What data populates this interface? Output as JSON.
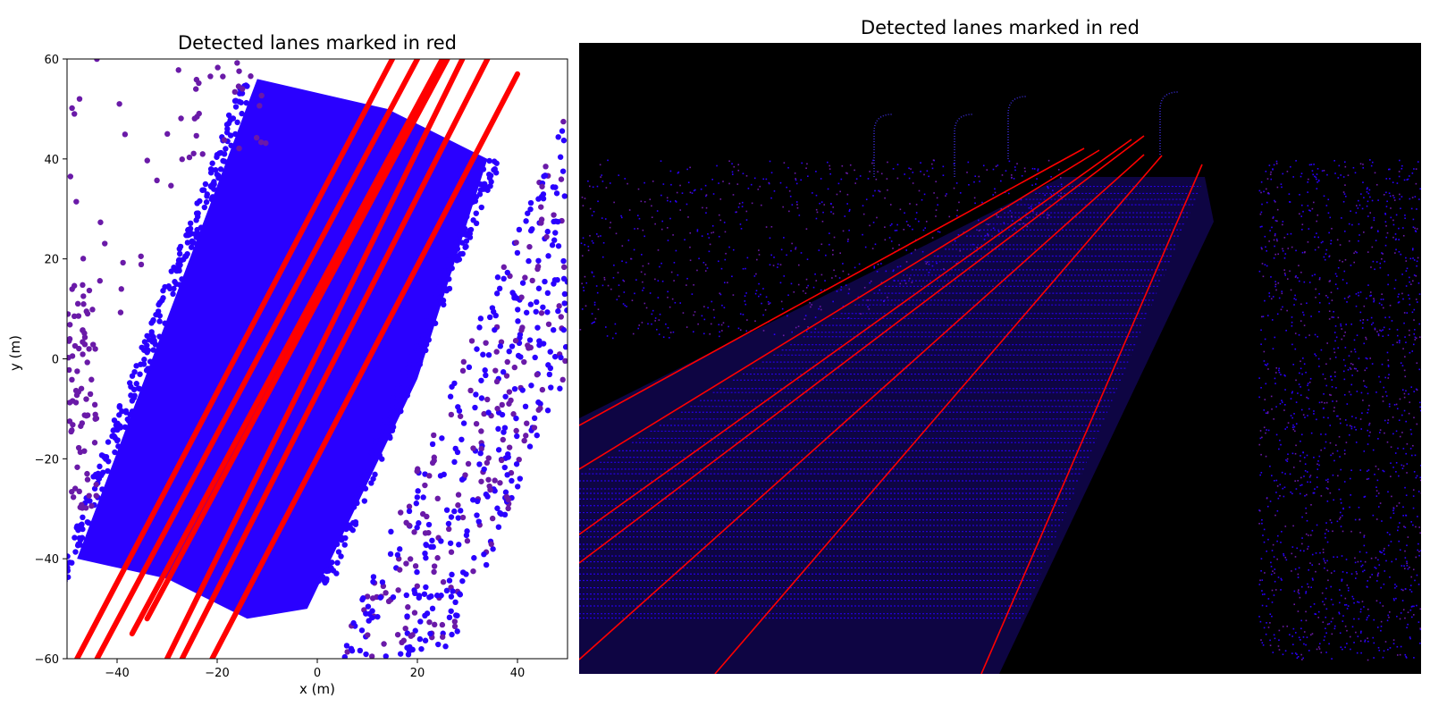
{
  "chart_data": [
    {
      "type": "scatter",
      "title": "Detected lanes marked in red",
      "xlabel": "x (m)",
      "ylabel": "y (m)",
      "xlim": [
        -50,
        50
      ],
      "ylim": [
        -60,
        60
      ],
      "xticks": [
        -40,
        -20,
        0,
        20,
        40
      ],
      "yticks": [
        -60,
        -40,
        -20,
        0,
        20,
        40,
        60
      ],
      "grid": false,
      "colors": {
        "points": "#2a00ff",
        "points_far": "#6a1aa8",
        "lanes": "#ff0000"
      },
      "series": [
        {
          "name": "",
          "type": "line",
          "color": "#ff0000",
          "lines": [
            {
              "x": [
                -48,
                15
              ],
              "y": [
                -60,
                60
              ]
            },
            {
              "x": [
                -44,
                20
              ],
              "y": [
                -60,
                60
              ]
            },
            {
              "x": [
                -37,
                25
              ],
              "y": [
                -55,
                60
              ]
            },
            {
              "x": [
                -34,
                26
              ],
              "y": [
                -52,
                60
              ]
            },
            {
              "x": [
                -30,
                29
              ],
              "y": [
                -60,
                60
              ]
            },
            {
              "x": [
                -27,
                34
              ],
              "y": [
                -60,
                60
              ]
            },
            {
              "x": [
                -21,
                40
              ],
              "y": [
                -60,
                57
              ]
            }
          ]
        }
      ]
    },
    {
      "type": "scatter",
      "title": "Detected lanes marked in red",
      "colors": {
        "background": "#000000",
        "points": "#2a00ff",
        "lanes": "#ff0000"
      }
    }
  ]
}
